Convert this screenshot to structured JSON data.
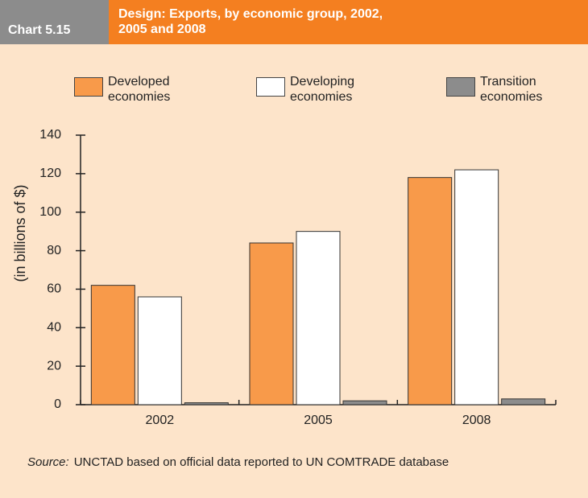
{
  "chart_data": {
    "type": "bar",
    "chart_number": "Chart 5.15",
    "title": "Design: Exports, by economic group, 2002, 2005 and 2008",
    "ylabel": "(in billions of $)",
    "categories": [
      "2002",
      "2005",
      "2008"
    ],
    "series": [
      {
        "name": "Developed economies",
        "color": "#f89a4a",
        "values": [
          62,
          84,
          118
        ]
      },
      {
        "name": "Developing economies",
        "color": "#ffffff",
        "values": [
          56,
          90,
          122
        ]
      },
      {
        "name": "Transition economies",
        "color": "#8c8c8c",
        "values": [
          1,
          2,
          3
        ]
      }
    ],
    "ylim": [
      0,
      140
    ],
    "yticks": [
      0,
      20,
      40,
      60,
      80,
      100,
      120,
      140
    ],
    "source_label": "Source:",
    "source_text": "UNCTAD based on official data reported to UN COMTRADE database"
  }
}
